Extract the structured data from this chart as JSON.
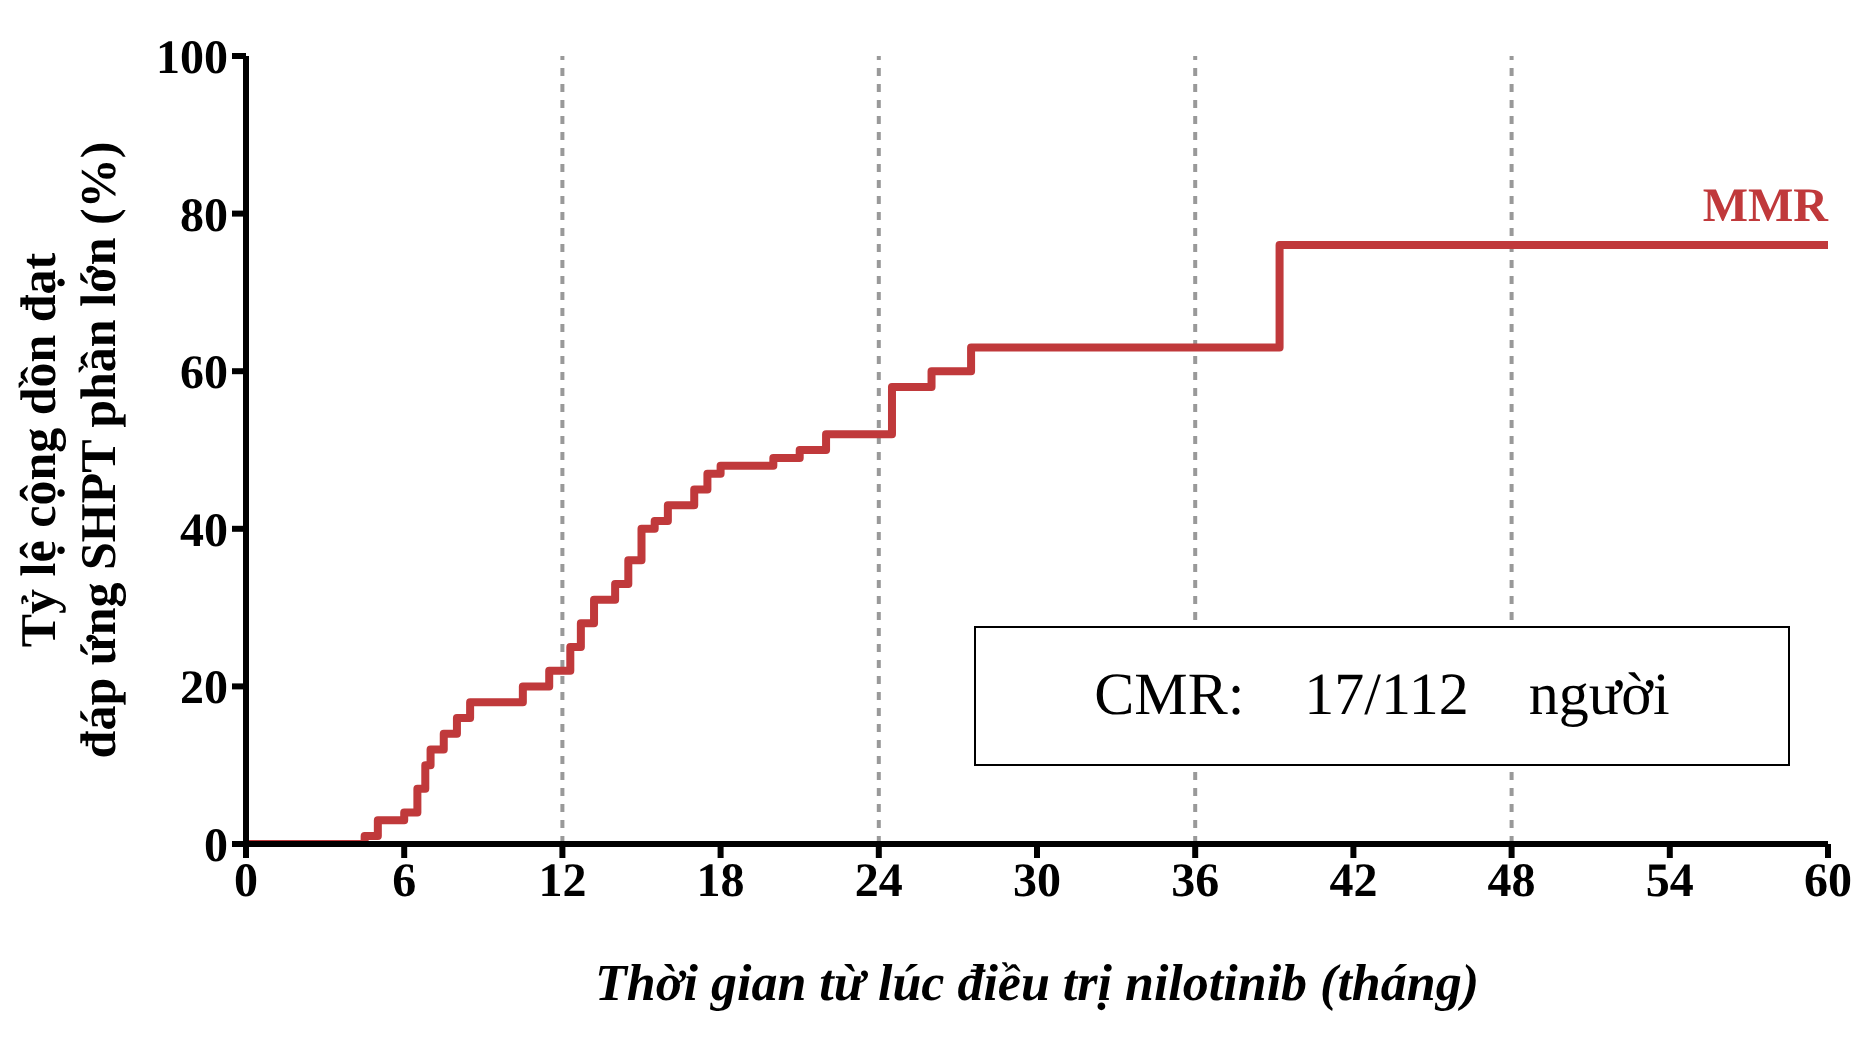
{
  "chart_data": {
    "type": "step",
    "xlabel": "Thời gian từ lúc điều trị nilotinib (tháng)",
    "ylabel": "Tỷ lệ cộng dồn đạt\nđáp ứng SHPT phần lớn (%)",
    "xlim": [
      0,
      60
    ],
    "xticks": [
      0,
      6,
      12,
      18,
      24,
      30,
      36,
      42,
      48,
      54,
      60
    ],
    "ylim": [
      0,
      100
    ],
    "yticks": [
      0,
      20,
      40,
      60,
      80,
      100
    ],
    "grid": false,
    "legend": false,
    "marker": "none",
    "line_style": "solid",
    "series": [
      {
        "name": "MMR",
        "color": "#c0393b",
        "x": [
          0,
          4.3,
          4.5,
          5,
          6,
          6.5,
          6.8,
          7,
          7.5,
          8,
          8.5,
          10,
          10.5,
          11.5,
          12.3,
          12.7,
          13.2,
          14,
          14.5,
          15,
          15.5,
          16,
          17,
          17.5,
          18,
          20,
          21,
          22,
          24.3,
          24.5,
          26,
          27.5,
          39,
          39.2,
          60
        ],
        "values": [
          0,
          0,
          1,
          3,
          4,
          7,
          10,
          12,
          14,
          16,
          18,
          18,
          20,
          22,
          25,
          28,
          31,
          33,
          36,
          40,
          41,
          43,
          45,
          47,
          48,
          49,
          50,
          52,
          52,
          58,
          60,
          63,
          63,
          76,
          76
        ]
      }
    ],
    "ref_lines": [
      {
        "axis": "x",
        "value": 12,
        "color": "#999999",
        "line_style": "dashed"
      },
      {
        "axis": "x",
        "value": 24,
        "color": "#999999",
        "line_style": "dashed"
      },
      {
        "axis": "x",
        "value": 36,
        "color": "#999999",
        "line_style": "dashed"
      },
      {
        "axis": "x",
        "value": 48,
        "color": "#999999",
        "line_style": "dashed"
      }
    ],
    "annotations": [
      "CMR:    17/112    người"
    ]
  }
}
